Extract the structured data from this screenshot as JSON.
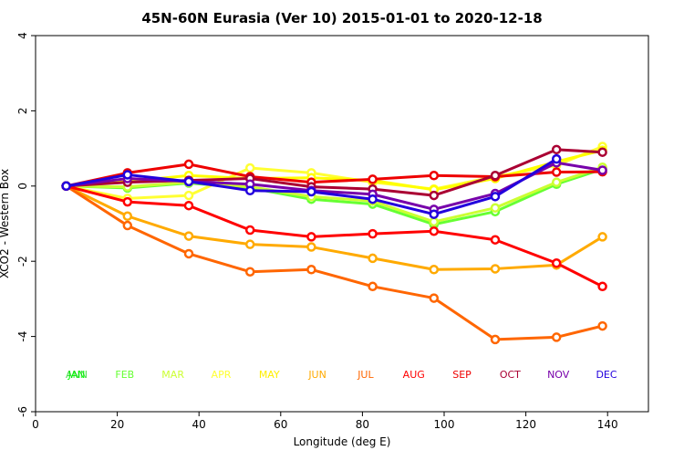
{
  "chart_data": {
    "type": "line",
    "title": "45N-60N Eurasia (Ver 10)   2015-01-01 to 2020-12-18",
    "xlabel": "Longitude (deg E)",
    "ylabel": "XCO2 - Western Box",
    "xlim": [
      0,
      150
    ],
    "ylim": [
      -6,
      4
    ],
    "xticks": [
      0,
      20,
      40,
      60,
      80,
      100,
      120,
      140
    ],
    "yticks": [
      -6,
      -4,
      -2,
      0,
      2,
      4
    ],
    "grid": false,
    "x": [
      7.5,
      22.5,
      37.5,
      52.5,
      67.5,
      82.5,
      97.5,
      112.5,
      127.5,
      138.75
    ],
    "series": [
      {
        "name": "JAN",
        "color": "#00ff00",
        "values": [
          0,
          null,
          null,
          null,
          null,
          null,
          null,
          null,
          null,
          null
        ]
      },
      {
        "name": "FEB",
        "color": "#66ff33",
        "values": [
          0,
          -0.05,
          0.08,
          -0.05,
          -0.35,
          -0.48,
          -1.02,
          -0.68,
          0.05,
          0.45
        ]
      },
      {
        "name": "MAR",
        "color": "#ccff33",
        "values": [
          0,
          -0.02,
          0.1,
          -0.02,
          -0.28,
          -0.4,
          -0.95,
          -0.58,
          0.1,
          0.5
        ]
      },
      {
        "name": "APR",
        "color": "#ffff33",
        "values": [
          0,
          -0.33,
          -0.25,
          0.48,
          0.35,
          0.1,
          -0.08,
          0.25,
          0.55,
          1.05
        ]
      },
      {
        "name": "MAY",
        "color": "#ffff00",
        "values": [
          0,
          0.12,
          0.28,
          0.2,
          0.22,
          0.15,
          -0.1,
          0.2,
          0.65,
          0.95
        ]
      },
      {
        "name": "JUN",
        "color": "#ffaa00",
        "values": [
          0,
          -0.8,
          -1.33,
          -1.55,
          -1.62,
          -1.92,
          -2.22,
          -2.2,
          -2.1,
          -1.35
        ]
      },
      {
        "name": "JUL",
        "color": "#ff6600",
        "values": [
          0,
          -1.05,
          -1.8,
          -2.28,
          -2.22,
          -2.67,
          -2.98,
          -4.08,
          -4.02,
          -3.72
        ]
      },
      {
        "name": "AUG",
        "color": "#ff0000",
        "values": [
          0,
          -0.42,
          -0.52,
          -1.17,
          -1.35,
          -1.27,
          -1.2,
          -1.43,
          -2.05,
          -2.67
        ]
      },
      {
        "name": "SEP",
        "color": "#ee0000",
        "values": [
          0,
          0.35,
          0.58,
          0.25,
          0.1,
          0.18,
          0.28,
          0.25,
          0.37,
          0.38
        ]
      },
      {
        "name": "OCT",
        "color": "#aa0033",
        "values": [
          0,
          0.1,
          0.15,
          0.2,
          -0.02,
          -0.08,
          -0.25,
          0.28,
          0.97,
          0.9
        ]
      },
      {
        "name": "NOV",
        "color": "#7700aa",
        "values": [
          0,
          0.2,
          0.12,
          0.05,
          -0.12,
          -0.22,
          -0.62,
          -0.2,
          0.62,
          0.42
        ]
      },
      {
        "name": "DEC",
        "color": "#2200dd",
        "values": [
          0,
          0.3,
          0.12,
          -0.12,
          -0.15,
          -0.35,
          -0.75,
          -0.28,
          0.72,
          null
        ]
      }
    ],
    "month_labels": [
      {
        "text": "JAN",
        "color": "#00ff00"
      },
      {
        "text": "FEB",
        "color": "#66ff33"
      },
      {
        "text": "MAR",
        "color": "#ccff33"
      },
      {
        "text": "APR",
        "color": "#ffff33"
      },
      {
        "text": "MAY",
        "color": "#ffee00"
      },
      {
        "text": "JUN",
        "color": "#ffaa00"
      },
      {
        "text": "JUL",
        "color": "#ff6600"
      },
      {
        "text": "AUG",
        "color": "#ff0000"
      },
      {
        "text": "SEP",
        "color": "#ee0000"
      },
      {
        "text": "OCT",
        "color": "#aa0033"
      },
      {
        "text": "NOV",
        "color": "#7700aa"
      },
      {
        "text": "DEC",
        "color": "#2200dd"
      }
    ],
    "month_label_overlay": {
      "text": "ANN",
      "color": "#00cc00"
    }
  }
}
